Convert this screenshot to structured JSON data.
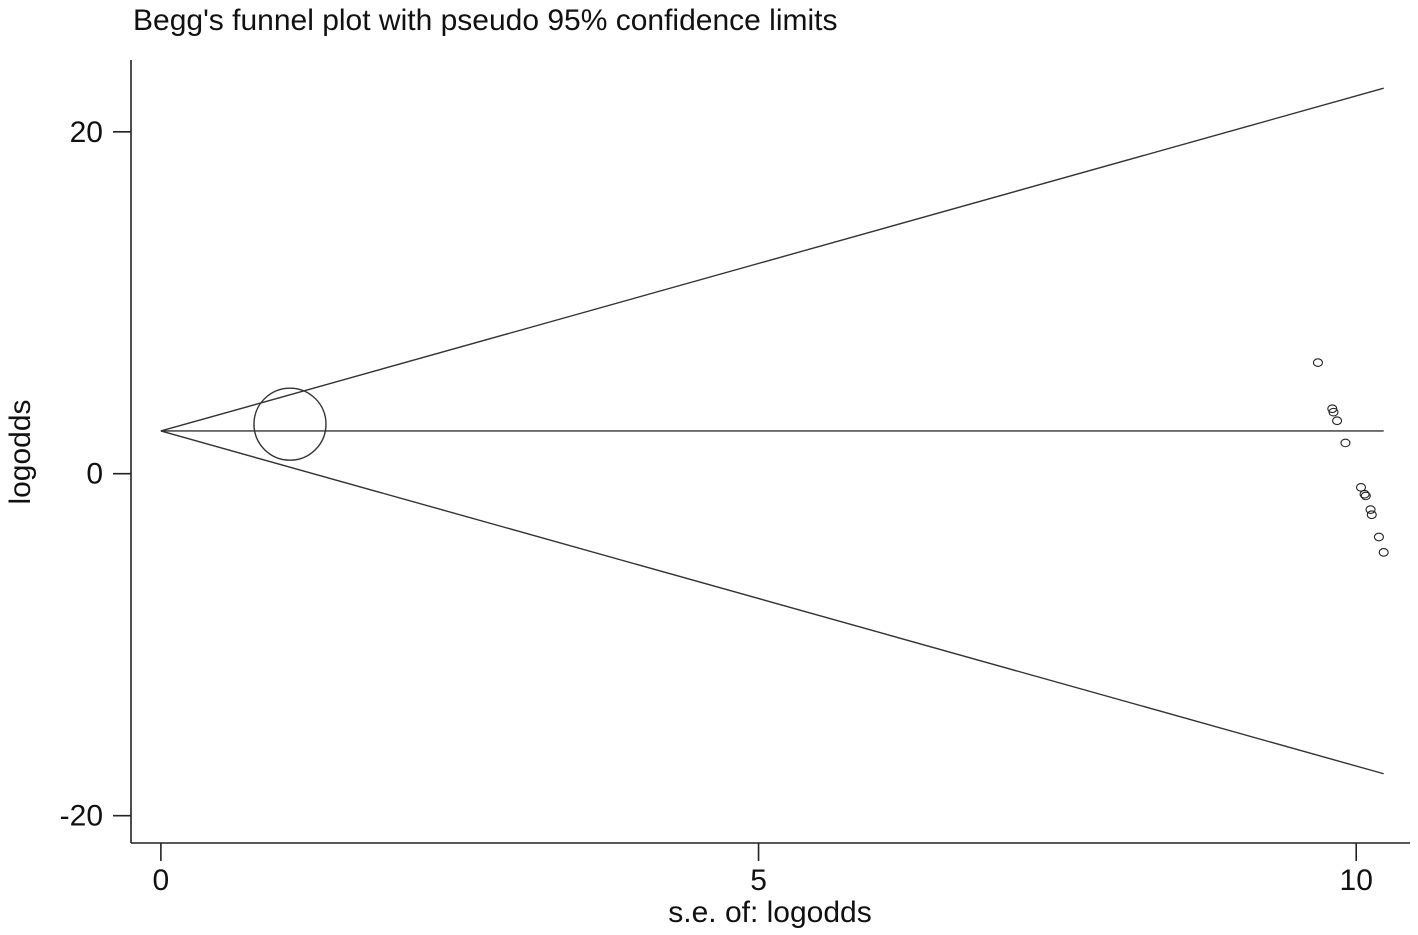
{
  "chart_data": {
    "type": "scatter",
    "title": "Begg's funnel plot with pseudo 95% confidence limits",
    "xlabel": "s.e. of: logodds",
    "ylabel": "logodds",
    "xlim": [
      -0.25,
      10.45
    ],
    "ylim": [
      -21.6,
      24.2
    ],
    "xticks": [
      0,
      5,
      10
    ],
    "xtick_labels": [
      "0",
      "5",
      "10"
    ],
    "yticks": [
      -20,
      0,
      20
    ],
    "ytick_labels": [
      "-20",
      "0",
      "20"
    ],
    "grid": false,
    "pooled_logodds": 2.5,
    "pseudo_ci_lines": {
      "upper": [
        {
          "x": 0,
          "y": 2.5
        },
        {
          "x": 10.23,
          "y": 22.55
        }
      ],
      "center": [
        {
          "x": 0,
          "y": 2.5
        },
        {
          "x": 10.23,
          "y": 2.5
        }
      ],
      "lower": [
        {
          "x": 0,
          "y": 2.5
        },
        {
          "x": 10.23,
          "y": -17.55
        }
      ]
    },
    "summary_point": {
      "x": 1.08,
      "y": 2.9
    },
    "points": [
      {
        "x": 9.68,
        "y": 6.5
      },
      {
        "x": 9.8,
        "y": 3.8
      },
      {
        "x": 9.81,
        "y": 3.6
      },
      {
        "x": 9.84,
        "y": 3.1
      },
      {
        "x": 9.91,
        "y": 1.8
      },
      {
        "x": 10.04,
        "y": -0.8
      },
      {
        "x": 10.07,
        "y": -1.2
      },
      {
        "x": 10.08,
        "y": -1.3
      },
      {
        "x": 10.12,
        "y": -2.1
      },
      {
        "x": 10.13,
        "y": -2.4
      },
      {
        "x": 10.19,
        "y": -3.7
      },
      {
        "x": 10.23,
        "y": -4.6
      }
    ]
  }
}
